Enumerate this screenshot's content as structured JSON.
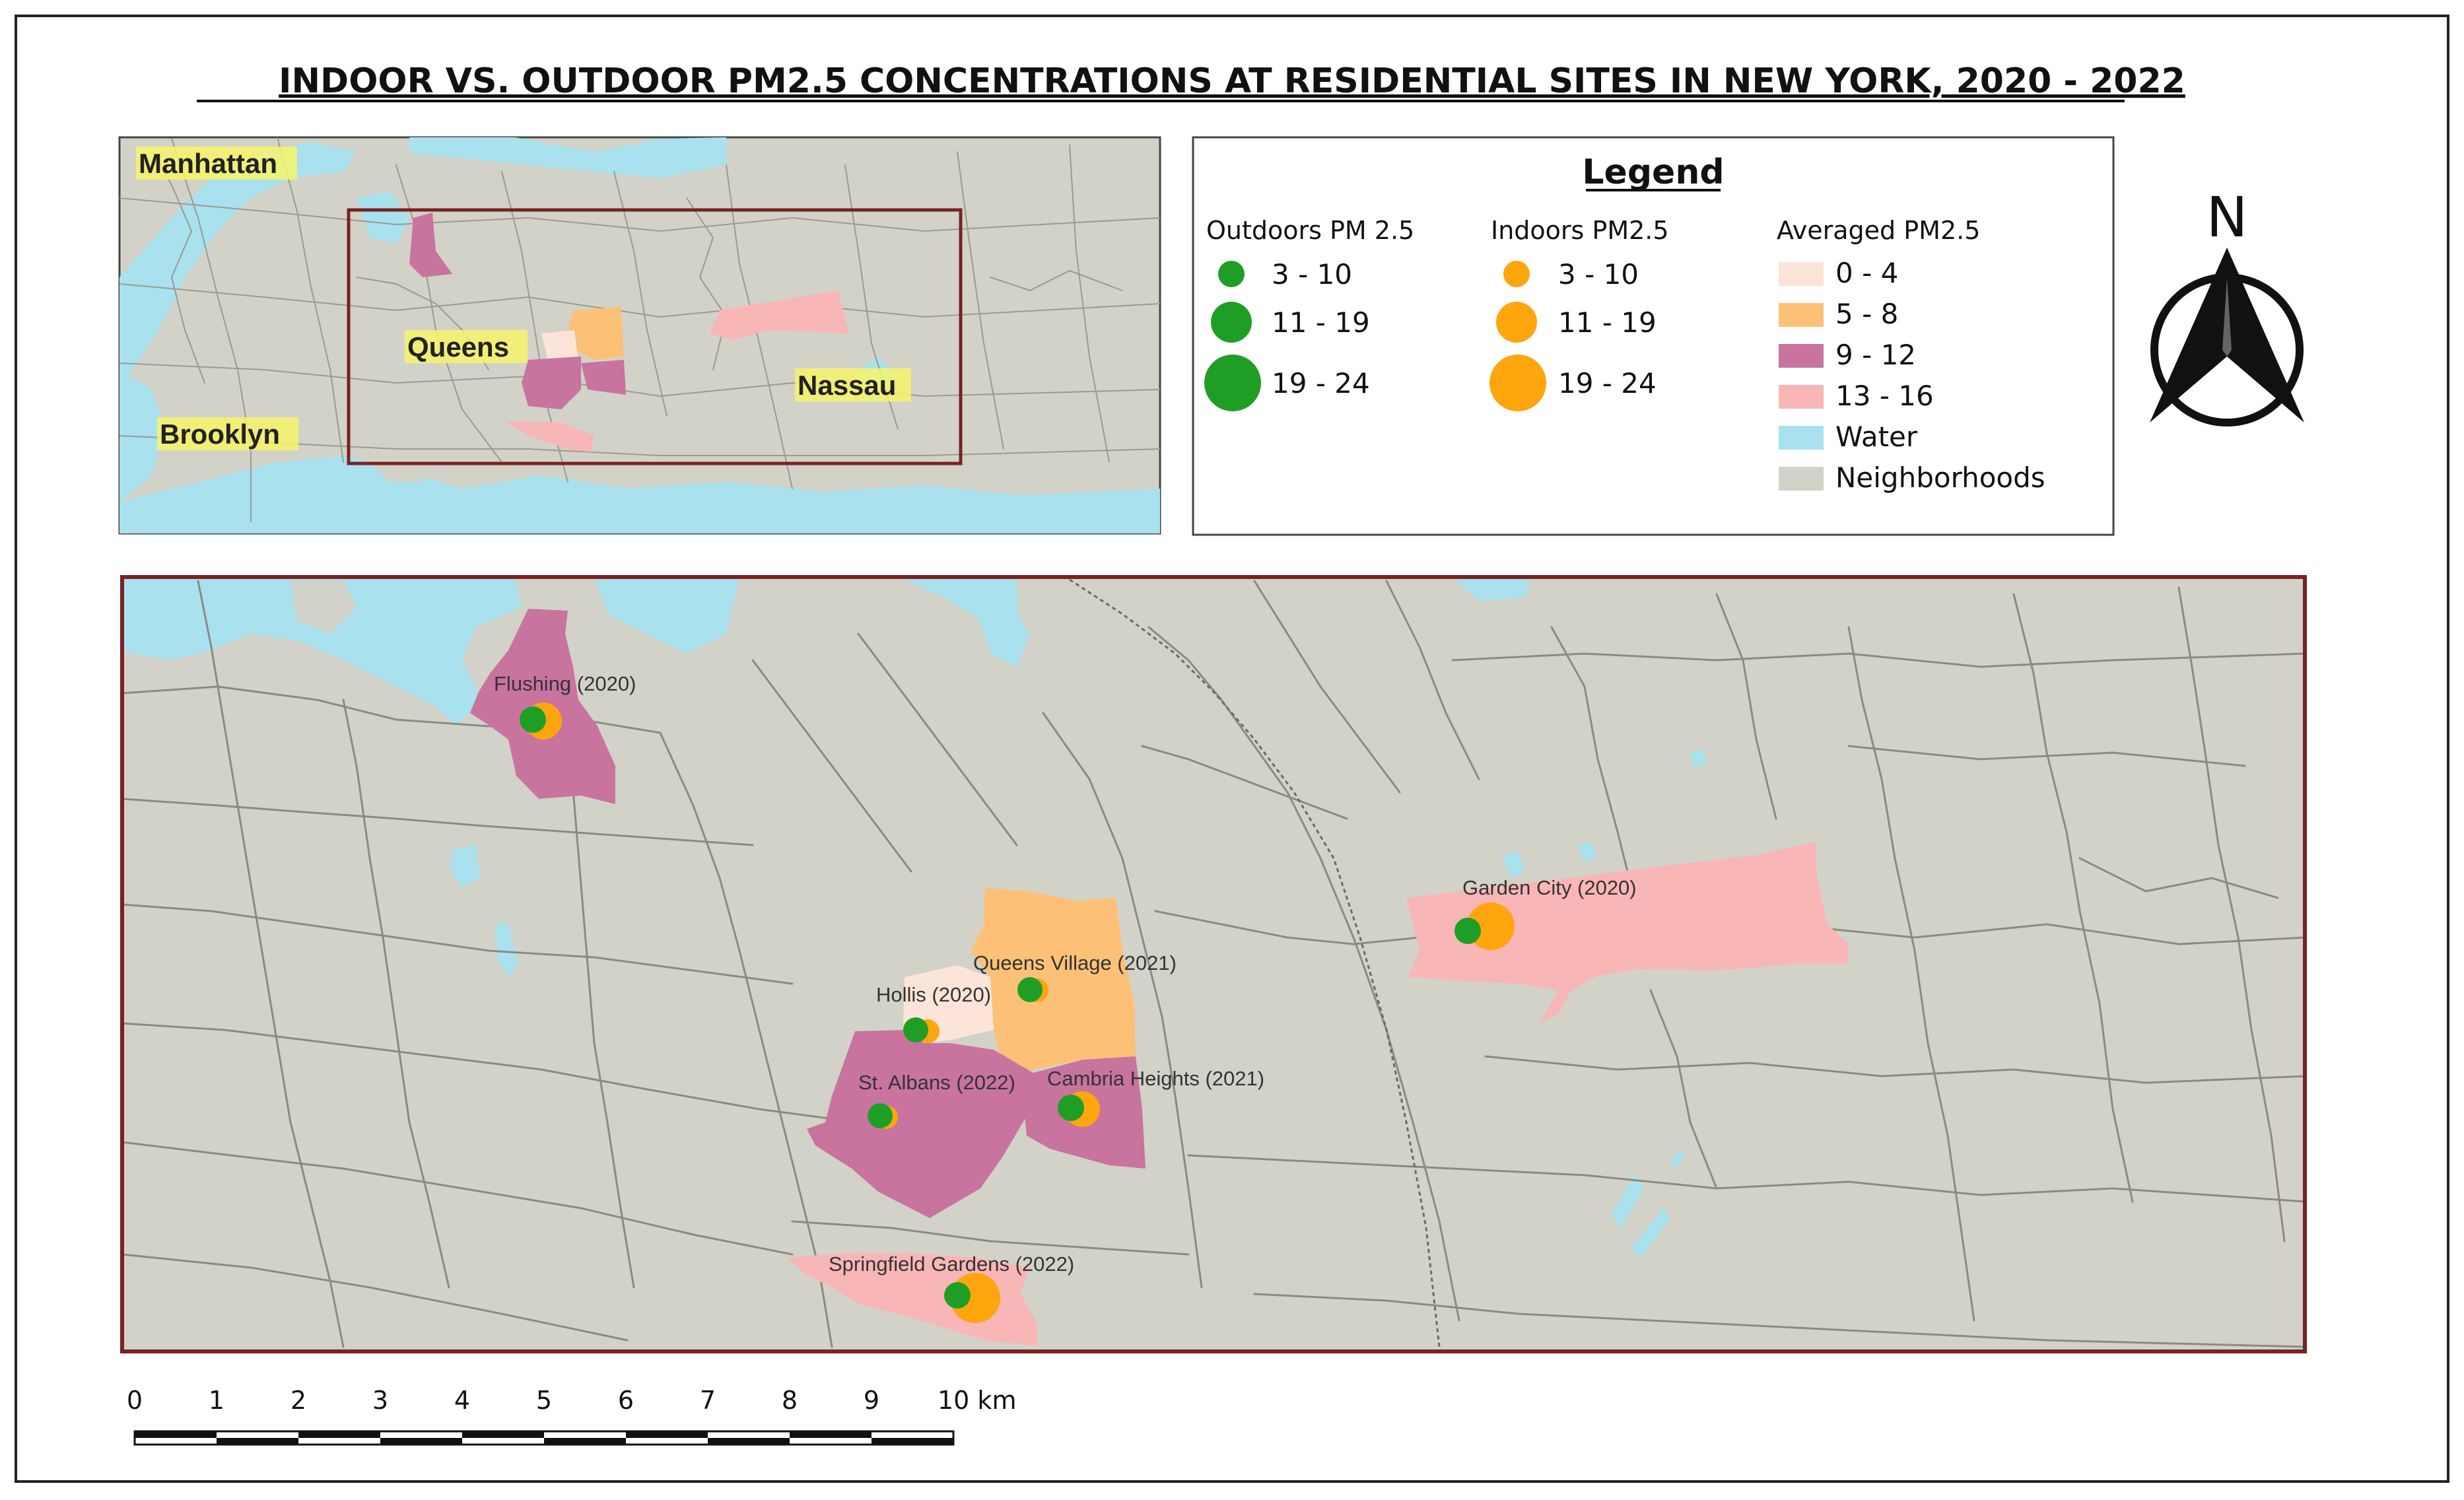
{
  "title": "INDOOR VS. OUTDOOR PM2.5 CONCENTRATIONS AT RESIDENTIAL SITES IN NEW YORK, 2020 - 2022",
  "colors": {
    "neighborhood": "#d3d2c8",
    "water": "#a9e1ee",
    "boundary": "#8a8a86",
    "frame": "#7a2222",
    "outdoor": "#1f9e26",
    "indoor": "#ffa50d",
    "pm_0_4": "#fde4d9",
    "pm_5_8": "#fcc177",
    "pm_9_12": "#c9739f",
    "pm_13_16": "#f9b6b6",
    "label_highlight": "#f7f56a"
  },
  "overview_map": {
    "labels": {
      "manhattan": "Manhattan",
      "queens": "Queens",
      "brooklyn": "Brooklyn",
      "nassau": "Nassau"
    }
  },
  "legend": {
    "title": "Legend",
    "outdoor": {
      "heading": "Outdoors PM 2.5",
      "classes": [
        "3 - 10",
        "11 - 19",
        "19 - 24"
      ]
    },
    "indoor": {
      "heading": "Indoors PM2.5",
      "classes": [
        "3 - 10",
        "11 - 19",
        "19 - 24"
      ]
    },
    "averaged": {
      "heading": "Averaged PM2.5",
      "classes": [
        {
          "label": "0 - 4",
          "color": "#fde4d9"
        },
        {
          "label": "5 - 8",
          "color": "#fcc177"
        },
        {
          "label": "9 - 12",
          "color": "#c9739f"
        },
        {
          "label": "13 - 16",
          "color": "#f9b6b6"
        },
        {
          "label": "Water",
          "color": "#a9e1ee"
        },
        {
          "label": "Neighborhoods",
          "color": "#d3d2c8"
        }
      ]
    }
  },
  "north_arrow": {
    "label": "N"
  },
  "sites": [
    {
      "name": "Flushing (2020)",
      "avg_class": "9 - 12",
      "outdoor_class": "3 - 10",
      "indoor_class": "11 - 19"
    },
    {
      "name": "Garden City (2020)",
      "avg_class": "13 - 16",
      "outdoor_class": "3 - 10",
      "indoor_class": "19 - 24"
    },
    {
      "name": "Queens Village (2021)",
      "avg_class": "5 - 8",
      "outdoor_class": "3 - 10",
      "indoor_class": "3 - 10"
    },
    {
      "name": "Hollis (2020)",
      "avg_class": "0 - 4",
      "outdoor_class": "3 - 10",
      "indoor_class": "3 - 10"
    },
    {
      "name": "St. Albans (2022)",
      "avg_class": "9 - 12",
      "outdoor_class": "3 - 10",
      "indoor_class": "3 - 10"
    },
    {
      "name": "Cambria Heights (2021)",
      "avg_class": "9 - 12",
      "outdoor_class": "3 - 10",
      "indoor_class": "11 - 19"
    },
    {
      "name": "Springfield Gardens (2022)",
      "avg_class": "13 - 16",
      "outdoor_class": "3 - 10",
      "indoor_class": "19 - 24"
    }
  ],
  "scale_bar": {
    "ticks": [
      "0",
      "1",
      "2",
      "3",
      "4",
      "5",
      "6",
      "7",
      "8",
      "9",
      "10 km"
    ]
  }
}
